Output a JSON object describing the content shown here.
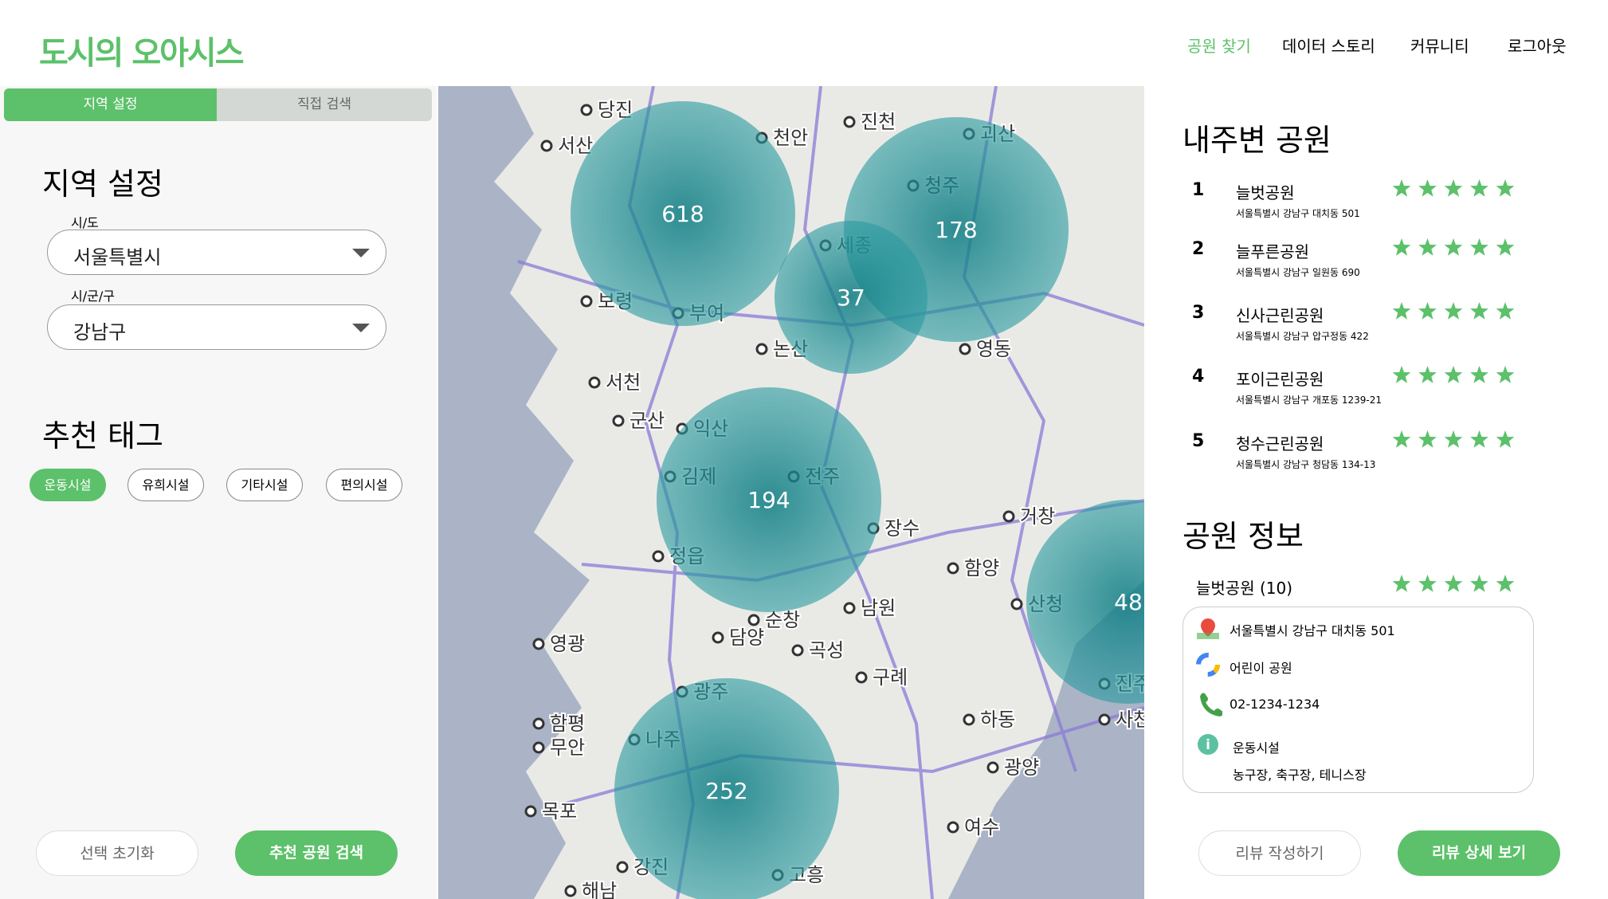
{
  "header": {
    "logo": "도시의 오아시스",
    "nav": [
      "공원 찾기",
      "데이터 스토리",
      "커뮤니티",
      "로그아웃"
    ]
  },
  "left": {
    "tabs": [
      "지역 설정",
      "직접 검색"
    ],
    "region_title": "지역 설정",
    "sido_label": "시/도",
    "sido_value": "서울특별시",
    "sigungu_label": "시/군/구",
    "sigungu_value": "강남구",
    "tag_title": "추천 태그",
    "tags": [
      "운동시설",
      "유희시설",
      "기타시설",
      "편의시설"
    ],
    "reset_button": "선택 초기화",
    "search_button": "추천 공원 검색"
  },
  "map": {
    "clusters": [
      {
        "label": "618"
      },
      {
        "label": "178"
      },
      {
        "label": "37"
      },
      {
        "label": "194"
      },
      {
        "label": "48"
      },
      {
        "label": "252"
      }
    ],
    "places": [
      "당진",
      "서산",
      "천안",
      "진천",
      "괴산",
      "청주",
      "세종",
      "보령",
      "부여",
      "논산",
      "영동",
      "군산",
      "익산",
      "김제",
      "정읍",
      "전주",
      "남원",
      "광주",
      "나주",
      "목포",
      "여수",
      "광양",
      "사천",
      "진주",
      "거창",
      "순창",
      "곡성",
      "구례",
      "담양",
      "영광",
      "함평",
      "무안",
      "강진",
      "해남",
      "고흥",
      "장수",
      "함양",
      "산청",
      "하동",
      "서천"
    ]
  },
  "right": {
    "nearby_title": "내주변 공원",
    "parks": [
      {
        "rank": "1",
        "name": "늘벗공원",
        "address": "서울특별시 강남구 대치동 501",
        "rating": 5
      },
      {
        "rank": "2",
        "name": "늘푸른공원",
        "address": "서울특별시 강남구 일원동 690",
        "rating": 5
      },
      {
        "rank": "3",
        "name": "신사근린공원",
        "address": "서울특별시 강남구 압구정동 422",
        "rating": 5
      },
      {
        "rank": "4",
        "name": "포이근린공원",
        "address": "서울특별시 강남구 개포동 1239-21",
        "rating": 5
      },
      {
        "rank": "5",
        "name": "청수근린공원",
        "address": "서울특별시 강남구 청담동 134-13",
        "rating": 5
      }
    ],
    "info_title": "공원 정보",
    "info_name": "늘벗공원 (10)",
    "info_rating": 5,
    "info_address": "서울특별시 강남구 대치동 501",
    "info_type": "어린이 공원",
    "info_phone": "02-1234-1234",
    "info_facility": "운동시설",
    "info_facility_detail": "농구장, 축구장, 테니스장",
    "review_write": "리뷰 작성하기",
    "review_detail": "리뷰 상세 보기"
  }
}
